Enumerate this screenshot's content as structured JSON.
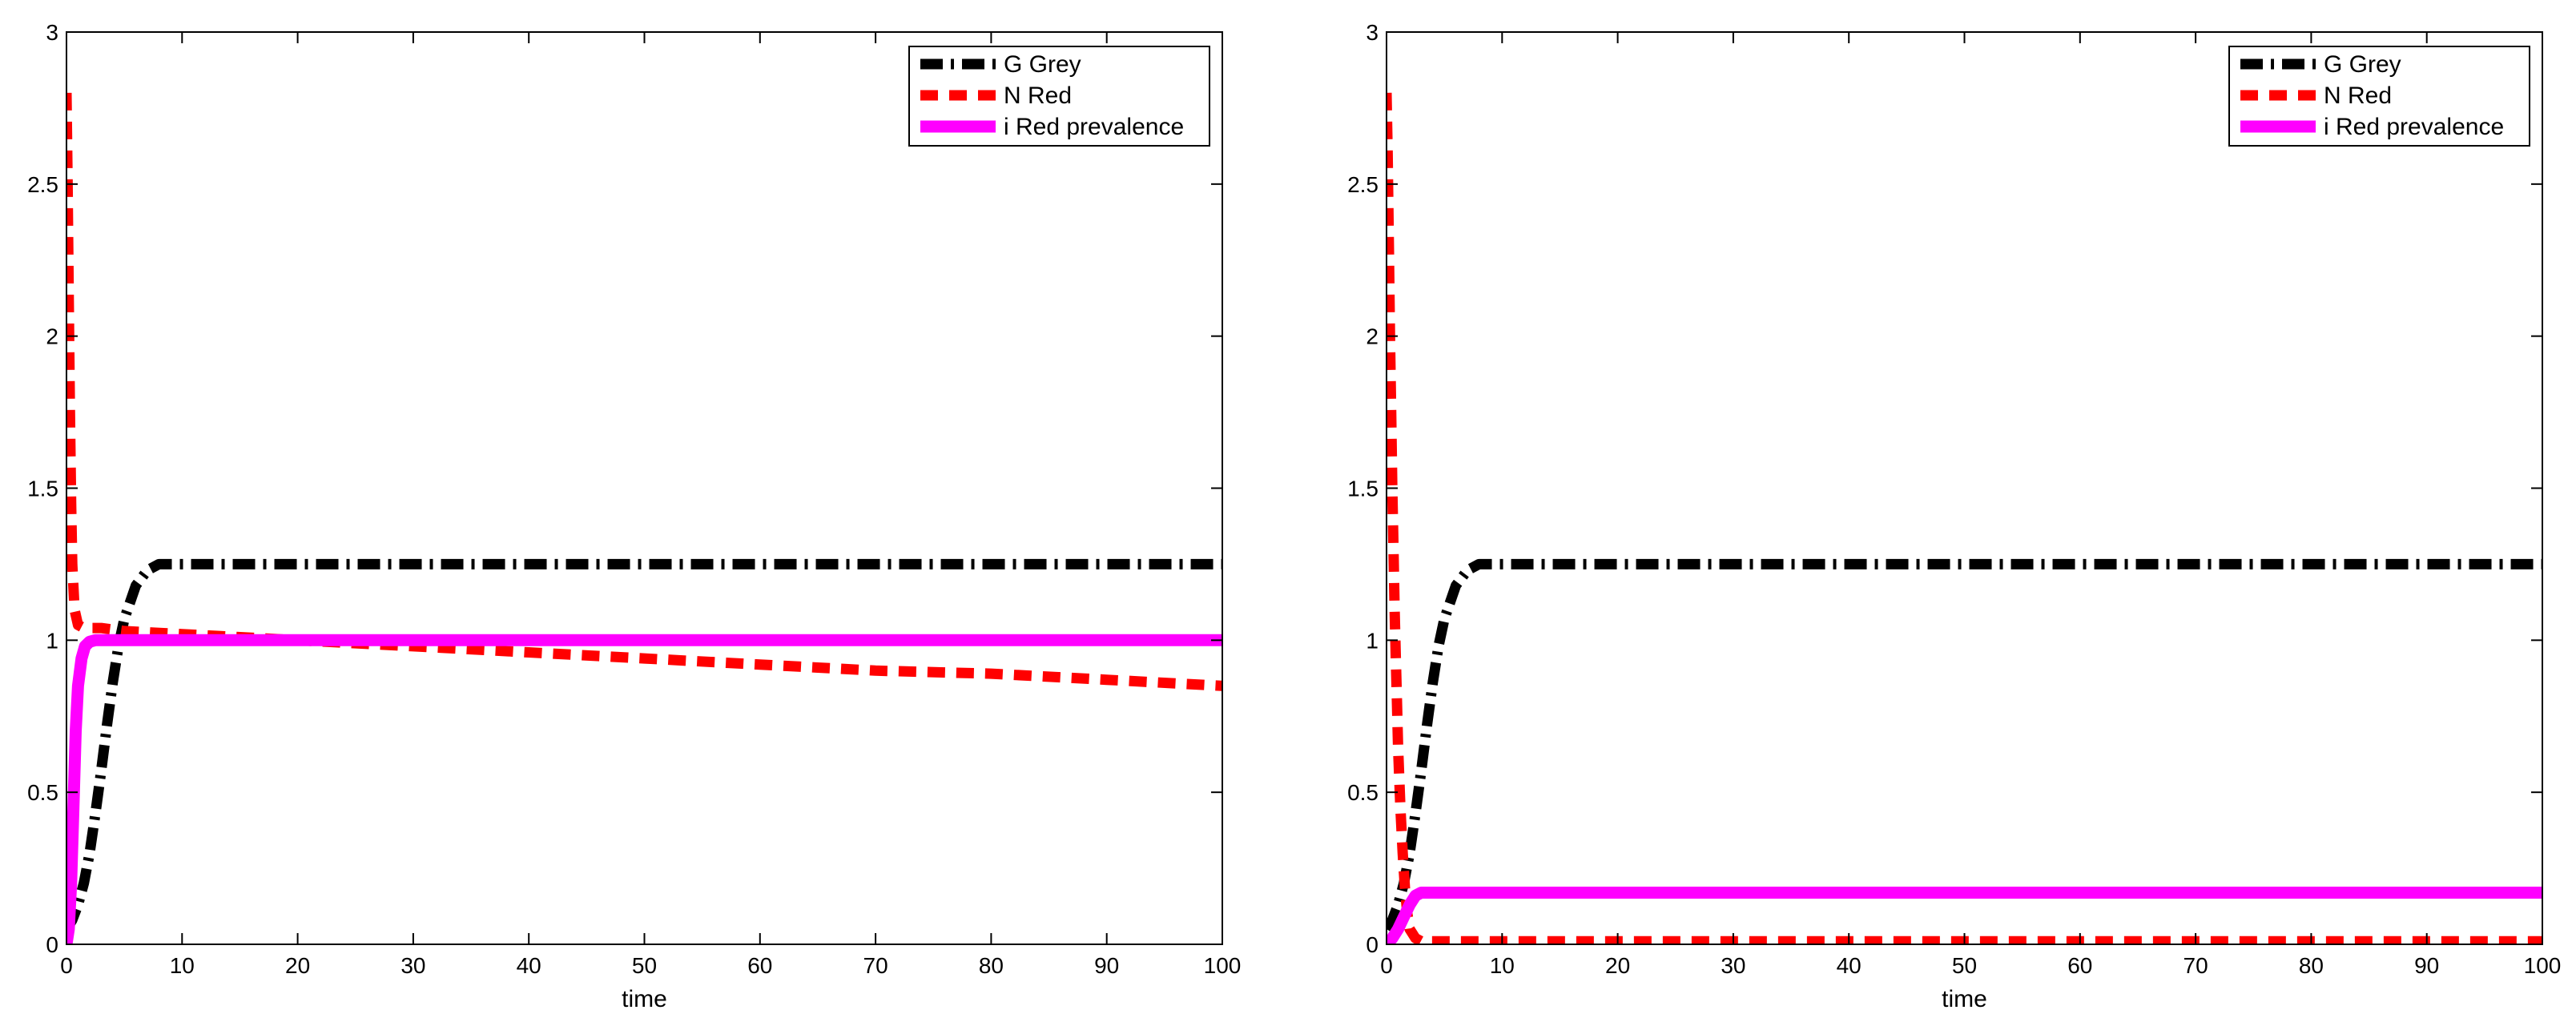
{
  "chart_data": [
    {
      "type": "line",
      "xlabel": "time",
      "ylabel": "",
      "xlim": [
        0,
        100
      ],
      "ylim": [
        0,
        3
      ],
      "xticks": [
        "0",
        "10",
        "20",
        "30",
        "40",
        "50",
        "60",
        "70",
        "80",
        "90",
        "100"
      ],
      "yticks": [
        "0",
        "0.5",
        "1",
        "1.5",
        "2",
        "2.5",
        "3"
      ],
      "legend_position": "top-right",
      "series": [
        {
          "name": "G Grey",
          "color": "#000000",
          "style": "dash-dot",
          "x": [
            0,
            0.5,
            1,
            1.5,
            2,
            2.5,
            3,
            3.5,
            4,
            4.5,
            5,
            6,
            7,
            8,
            10,
            20,
            40,
            60,
            80,
            100
          ],
          "y": [
            0.05,
            0.08,
            0.13,
            0.2,
            0.3,
            0.43,
            0.57,
            0.72,
            0.86,
            0.98,
            1.07,
            1.18,
            1.23,
            1.25,
            1.25,
            1.25,
            1.25,
            1.25,
            1.25,
            1.25
          ]
        },
        {
          "name": "N Red",
          "color": "#ff0000",
          "style": "dashed",
          "x": [
            0,
            0.1,
            0.2,
            0.3,
            0.4,
            0.5,
            0.7,
            1,
            1.5,
            2,
            3,
            5,
            10,
            20,
            30,
            40,
            50,
            60,
            70,
            80,
            90,
            100
          ],
          "y": [
            2.8,
            2.5,
            2.1,
            1.75,
            1.45,
            1.25,
            1.1,
            1.05,
            1.04,
            1.04,
            1.04,
            1.03,
            1.02,
            1.0,
            0.98,
            0.96,
            0.94,
            0.92,
            0.9,
            0.89,
            0.87,
            0.85
          ]
        },
        {
          "name": "i Red prevalence",
          "color": "#ff00ff",
          "style": "solid",
          "x": [
            0,
            0.2,
            0.4,
            0.6,
            0.8,
            1,
            1.3,
            1.6,
            2,
            2.5,
            3,
            100
          ],
          "y": [
            0,
            0.05,
            0.2,
            0.45,
            0.7,
            0.85,
            0.94,
            0.98,
            0.995,
            1.0,
            1.0,
            1.0
          ]
        }
      ]
    },
    {
      "type": "line",
      "xlabel": "time",
      "ylabel": "",
      "xlim": [
        0,
        100
      ],
      "ylim": [
        0,
        3
      ],
      "xticks": [
        "0",
        "10",
        "20",
        "30",
        "40",
        "50",
        "60",
        "70",
        "80",
        "90",
        "100"
      ],
      "yticks": [
        "0",
        "0.5",
        "1",
        "1.5",
        "2",
        "2.5",
        "3"
      ],
      "legend_position": "top-right",
      "series": [
        {
          "name": "G Grey",
          "color": "#000000",
          "style": "dash-dot",
          "x": [
            0,
            0.5,
            1,
            1.5,
            2,
            2.5,
            3,
            3.5,
            4,
            4.5,
            5,
            6,
            7,
            8,
            10,
            20,
            40,
            60,
            80,
            100
          ],
          "y": [
            0.05,
            0.08,
            0.13,
            0.2,
            0.3,
            0.43,
            0.57,
            0.72,
            0.86,
            0.98,
            1.07,
            1.18,
            1.23,
            1.25,
            1.25,
            1.25,
            1.25,
            1.25,
            1.25,
            1.25
          ]
        },
        {
          "name": "N Red",
          "color": "#ff0000",
          "style": "dashed",
          "x": [
            0,
            0.1,
            0.2,
            0.3,
            0.4,
            0.5,
            0.6,
            0.7,
            0.8,
            0.9,
            1,
            1.2,
            1.4,
            1.6,
            1.8,
            2,
            2.5,
            3,
            5,
            10,
            100
          ],
          "y": [
            2.8,
            2.6,
            2.3,
            2.0,
            1.75,
            1.5,
            1.3,
            1.1,
            0.95,
            0.8,
            0.65,
            0.45,
            0.3,
            0.18,
            0.1,
            0.05,
            0.02,
            0.01,
            0.01,
            0.01,
            0.01
          ]
        },
        {
          "name": "i Red prevalence",
          "color": "#ff00ff",
          "style": "solid",
          "x": [
            0,
            0.5,
            1,
            1.5,
            2,
            2.5,
            3,
            100
          ],
          "y": [
            0,
            0.02,
            0.05,
            0.09,
            0.13,
            0.16,
            0.17,
            0.17
          ]
        }
      ]
    }
  ]
}
